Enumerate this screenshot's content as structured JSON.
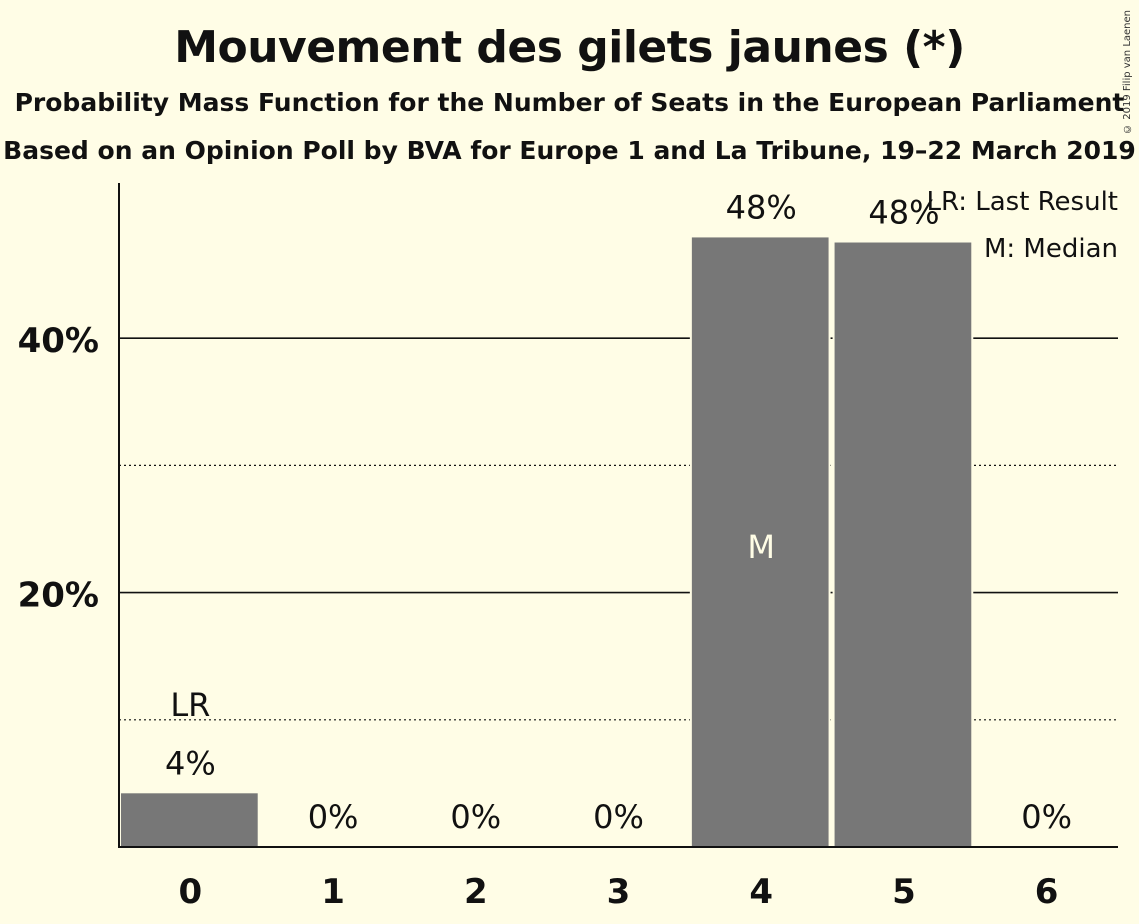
{
  "title": "Mouvement des gilets jaunes (*)",
  "subtitle1": "Probability Mass Function for the Number of Seats in the European Parliament",
  "subtitle2": "Based on an Opinion Poll by BVA for Europe 1 and La Tribune, 19–22 March 2019",
  "copyright": "© 2019 Filip van Laenen",
  "legend": {
    "last_result": "LR: Last Result",
    "median": "M: Median"
  },
  "colors": {
    "background": "#fffde6",
    "bar": "#777777",
    "text": "#111111"
  },
  "chart_data": {
    "type": "bar",
    "categories": [
      "0",
      "1",
      "2",
      "3",
      "4",
      "5",
      "6"
    ],
    "values": [
      4.3,
      0,
      0,
      0,
      48.0,
      47.6,
      0
    ],
    "value_labels": [
      "4%",
      "0%",
      "0%",
      "0%",
      "48%",
      "48%",
      "0%"
    ],
    "ylim": [
      0,
      52
    ],
    "yticks": [
      {
        "value": 10,
        "label": "",
        "style": "dotted"
      },
      {
        "value": 20,
        "label": "20%",
        "style": "solid"
      },
      {
        "value": 30,
        "label": "",
        "style": "dotted"
      },
      {
        "value": 40,
        "label": "40%",
        "style": "solid"
      }
    ],
    "last_result_category": "0",
    "last_result_marker": "LR",
    "median_category": "4",
    "median_marker": "M",
    "legend_position": "top-right"
  }
}
